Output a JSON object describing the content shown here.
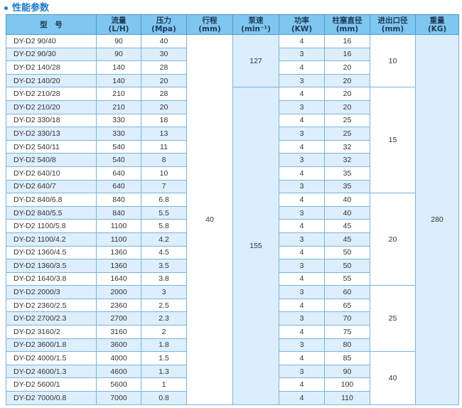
{
  "title": "性能参数",
  "colors": {
    "header_bg": "#7fc6f0",
    "row_alt_bg": "#ddeefc",
    "title": "#1a7ac8"
  },
  "headers": [
    {
      "l1": "型　号",
      "l2": ""
    },
    {
      "l1": "流量",
      "l2": "(L/H)"
    },
    {
      "l1": "压力",
      "l2": "(Mpa)"
    },
    {
      "l1": "行程",
      "l2": "(mm)"
    },
    {
      "l1": "泵速",
      "l2": "(min⁻¹)"
    },
    {
      "l1": "功率",
      "l2": "(KW)"
    },
    {
      "l1": "柱塞直径",
      "l2": "(mm)"
    },
    {
      "l1": "进出口径",
      "l2": "(mm)"
    },
    {
      "l1": "重量",
      "l2": "(KG)"
    }
  ],
  "rows": [
    [
      "DY-D2  90/40",
      "90",
      "40",
      "4",
      "16"
    ],
    [
      "DY-D2  90/30",
      "90",
      "30",
      "3",
      "16"
    ],
    [
      "DY-D2  140/28",
      "140",
      "28",
      "4",
      "20"
    ],
    [
      "DY-D2  140/20",
      "140",
      "20",
      "3",
      "20"
    ],
    [
      "DY-D2  210/28",
      "210",
      "28",
      "4",
      "20"
    ],
    [
      "DY-D2  210/20",
      "210",
      "20",
      "3",
      "20"
    ],
    [
      "DY-D2  330/18",
      "330",
      "18",
      "4",
      "25"
    ],
    [
      "DY-D2  330/13",
      "330",
      "13",
      "3",
      "25"
    ],
    [
      "DY-D2  540/11",
      "540",
      "11",
      "4",
      "32"
    ],
    [
      "DY-D2  540/8",
      "540",
      "8",
      "3",
      "32"
    ],
    [
      "DY-D2  640/10",
      "640",
      "10",
      "4",
      "35"
    ],
    [
      "DY-D2  640/7",
      "640",
      "7",
      "3",
      "35"
    ],
    [
      "DY-D2  840/6.8",
      "840",
      "6.8",
      "4",
      "40"
    ],
    [
      "DY-D2  840/5.5",
      "840",
      "5.5",
      "3",
      "40"
    ],
    [
      "DY-D2  1100/5.8",
      "1100",
      "5.8",
      "4",
      "45"
    ],
    [
      "DY-D2  1100/4.2",
      "1100",
      "4.2",
      "3",
      "45"
    ],
    [
      "DY-D2  1360/4.5",
      "1360",
      "4.5",
      "4",
      "50"
    ],
    [
      "DY-D2  1360/3.5",
      "1360",
      "3.5",
      "3",
      "50"
    ],
    [
      "DY-D2  1640/3.8",
      "1640",
      "3.8",
      "4",
      "55"
    ],
    [
      "DY-D2  2000/3",
      "2000",
      "3",
      "3",
      "60"
    ],
    [
      "DY-D2  2360/2.5",
      "2360",
      "2.5",
      "4",
      "65"
    ],
    [
      "DY-D2  2700/2.3",
      "2700",
      "2.3",
      "3",
      "70"
    ],
    [
      "DY-D2  3160/2",
      "3160",
      "2",
      "4",
      "75"
    ],
    [
      "DY-D2  3600/1.8",
      "3600",
      "1.8",
      "3",
      "80"
    ],
    [
      "DY-D2  4000/1.5",
      "4000",
      "1.5",
      "4",
      "85"
    ],
    [
      "DY-D2  4600/1.3",
      "4600",
      "1.3",
      "3",
      "90"
    ],
    [
      "DY-D2  5600/1",
      "5600",
      "1",
      "4",
      "100"
    ],
    [
      "DY-D2  7000/0.8",
      "7000",
      "0.8",
      "4",
      "110"
    ]
  ],
  "stroke": [
    {
      "value": "40",
      "span": 28
    }
  ],
  "pump_speed": [
    {
      "value": "127",
      "span": 4
    },
    {
      "value": "155",
      "span": 24
    }
  ],
  "port_diameter": [
    {
      "value": "10",
      "span": 4
    },
    {
      "value": "15",
      "span": 8
    },
    {
      "value": "20",
      "span": 7
    },
    {
      "value": "25",
      "span": 5
    },
    {
      "value": "40",
      "span": 4
    }
  ],
  "weight": [
    {
      "value": "280",
      "span": 28
    }
  ]
}
